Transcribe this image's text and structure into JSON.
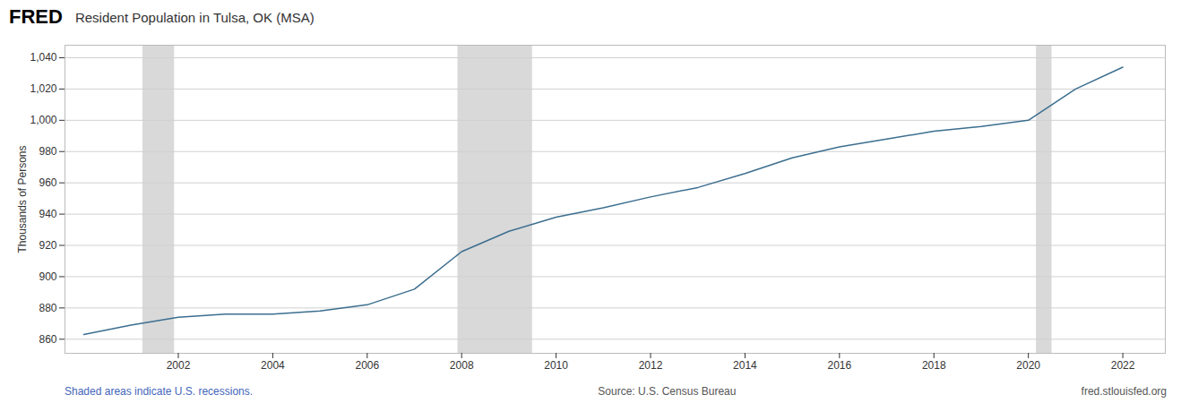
{
  "chart_data": {
    "type": "line",
    "title": "Resident Population in Tulsa, OK (MSA)",
    "ylabel": "Thousands of Persons",
    "annotations": [
      "FRED",
      "Shaded areas indicate U.S. recessions.",
      "Source: U.S. Census Bureau",
      "fred.stlouisfed.org"
    ],
    "x": [
      2000,
      2001,
      2002,
      2003,
      2004,
      2005,
      2006,
      2007,
      2008,
      2009,
      2010,
      2011,
      2012,
      2013,
      2014,
      2015,
      2016,
      2017,
      2018,
      2019,
      2020,
      2021,
      2022
    ],
    "values": [
      863,
      869,
      874,
      876,
      876,
      878,
      882,
      892,
      916,
      929,
      938,
      944,
      951,
      957,
      966,
      976,
      983,
      988,
      993,
      996,
      1000,
      1020,
      1034
    ],
    "color": "#3c6e8f",
    "recessions": {
      "color": "#d9d9d9",
      "ranges": [
        [
          2001.25,
          2001.92
        ],
        [
          2007.92,
          2009.5
        ],
        [
          2020.17,
          2020.5
        ]
      ]
    },
    "xlim": [
      1999.6,
      2022.9
    ],
    "xticks": [
      2002,
      2004,
      2006,
      2008,
      2010,
      2012,
      2014,
      2016,
      2018,
      2020,
      2022
    ],
    "ylim": [
      851,
      1048
    ],
    "yticks": [
      860,
      880,
      900,
      920,
      940,
      960,
      980,
      {
        "value": 1000,
        "label": "1,000"
      },
      {
        "value": 1020,
        "label": "1,020"
      },
      {
        "value": 1040,
        "label": "1,040"
      }
    ],
    "grid": true
  }
}
